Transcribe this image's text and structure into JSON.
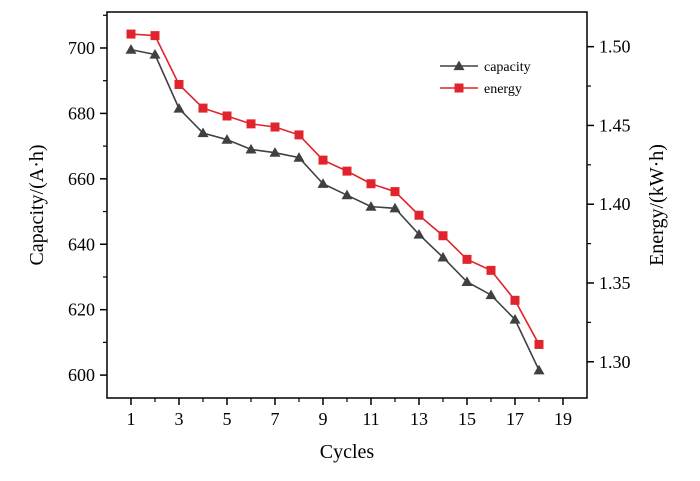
{
  "chart_data": {
    "type": "line",
    "x": [
      1,
      2,
      3,
      4,
      5,
      6,
      7,
      8,
      9,
      10,
      11,
      12,
      13,
      14,
      15,
      16,
      17,
      18
    ],
    "xlabel": "Cycles",
    "ylabel_left": "Capacity/(A·h)",
    "ylabel_right": "Energy/(kW·h)",
    "xlim": [
      0,
      20
    ],
    "ylim_left": [
      593,
      711
    ],
    "ylim_right": [
      1.277,
      1.522
    ],
    "xticks": [
      "1",
      "3",
      "5",
      "7",
      "9",
      "11",
      "13",
      "15",
      "17",
      "19"
    ],
    "yticks_left": [
      "600",
      "620",
      "640",
      "660",
      "680",
      "700"
    ],
    "yticks_right": [
      "1.30",
      "1.35",
      "1.40",
      "1.45",
      "1.50"
    ],
    "legend_position": "top-right",
    "series": [
      {
        "name": "capacity",
        "axis": "left",
        "marker": "triangle",
        "color": "#404040",
        "values": [
          699.5,
          698,
          681.5,
          674,
          672,
          669,
          668,
          666.5,
          658.5,
          655,
          651.5,
          651,
          643,
          636,
          628.5,
          624.5,
          617,
          601.5
        ]
      },
      {
        "name": "energy",
        "axis": "right",
        "marker": "square",
        "color": "#e0242c",
        "values": [
          1.508,
          1.507,
          1.476,
          1.461,
          1.456,
          1.451,
          1.449,
          1.444,
          1.428,
          1.421,
          1.413,
          1.408,
          1.393,
          1.38,
          1.365,
          1.358,
          1.339,
          1.311
        ]
      }
    ]
  }
}
